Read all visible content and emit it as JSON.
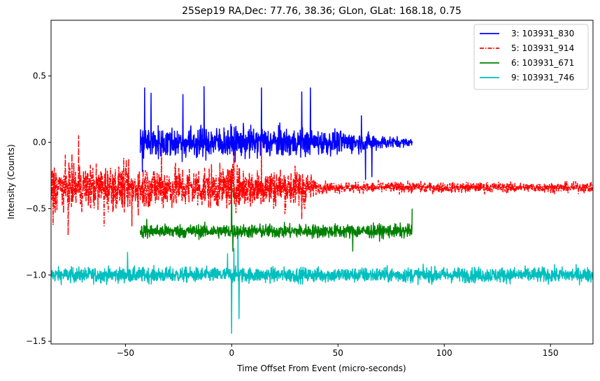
{
  "chart_data": {
    "type": "line",
    "title": "25Sep19 RA,Dec:   77.76,  38.36; GLon, GLat:  168.18,   0.75",
    "xlabel": "Time Offset From Event (micro-seconds)",
    "ylabel": "Intensity (Counts)",
    "xlim": [
      -85,
      170
    ],
    "ylim": [
      -1.52,
      0.92
    ],
    "xticks": [
      -50,
      0,
      50,
      100,
      150
    ],
    "xtick_labels": [
      "−50",
      "0",
      "50",
      "100",
      "150"
    ],
    "yticks": [
      -1.5,
      -1.0,
      -0.5,
      0.0,
      0.5
    ],
    "ytick_labels": [
      "−1.5",
      "−1.0",
      "−0.5",
      "0.0",
      "0.5"
    ],
    "grid": false,
    "legend_position": "top-right",
    "series": [
      {
        "name": "3: 103931_830",
        "color": "#0000ff",
        "linestyle": "solid",
        "x_start": -43,
        "x_end": 85,
        "mean": 0.0,
        "noise_envelope": [
          {
            "x": -43,
            "amplitude": 0.12
          },
          {
            "x": 20,
            "amplitude": 0.11
          },
          {
            "x": 55,
            "amplitude": 0.08
          },
          {
            "x": 85,
            "amplitude": 0.025
          }
        ],
        "peaks": [
          {
            "x": -42,
            "y": -0.22
          },
          {
            "x": -41,
            "y": 0.41
          },
          {
            "x": -38,
            "y": 0.37
          },
          {
            "x": -23,
            "y": 0.36
          },
          {
            "x": -13,
            "y": 0.42
          },
          {
            "x": 14,
            "y": 0.41
          },
          {
            "x": 33,
            "y": 0.38
          },
          {
            "x": 37,
            "y": 0.41
          },
          {
            "x": 61,
            "y": 0.2
          },
          {
            "x": 63,
            "y": -0.28
          },
          {
            "x": 66,
            "y": -0.26
          }
        ]
      },
      {
        "name": "5: 103931_914",
        "color": "#ff0000",
        "linestyle": "dashdot",
        "x_start": -85,
        "x_end": 170,
        "mean": -0.34,
        "noise_envelope": [
          {
            "x": -85,
            "amplitude": 0.17
          },
          {
            "x": 35,
            "amplitude": 0.14
          },
          {
            "x": 40,
            "amplitude": 0.04
          },
          {
            "x": 170,
            "amplitude": 0.035
          }
        ],
        "peaks": [
          {
            "x": -84,
            "y": -0.62
          },
          {
            "x": -77,
            "y": -0.7
          },
          {
            "x": -72,
            "y": 0.05
          },
          {
            "x": -60,
            "y": -0.63
          },
          {
            "x": -47,
            "y": -0.63
          },
          {
            "x": -33,
            "y": 0.04
          },
          {
            "x": 1,
            "y": 0.04
          },
          {
            "x": 14,
            "y": 0.02
          },
          {
            "x": 33,
            "y": -0.58
          }
        ]
      },
      {
        "name": "6: 103931_671",
        "color": "#008000",
        "linestyle": "solid",
        "x_start": -43,
        "x_end": 85,
        "mean": -0.67,
        "noise_envelope": [
          {
            "x": -43,
            "amplitude": 0.05
          },
          {
            "x": 85,
            "amplitude": 0.05
          }
        ],
        "peaks": [
          {
            "x": 0,
            "y": -0.2
          },
          {
            "x": 0.5,
            "y": -0.82
          },
          {
            "x": -40,
            "y": -0.58
          },
          {
            "x": 85,
            "y": -0.5
          },
          {
            "x": 57,
            "y": -0.82
          }
        ]
      },
      {
        "name": "9: 103931_746",
        "color": "#00bfbf",
        "linestyle": "solid",
        "x_start": -85,
        "x_end": 170,
        "mean": -1.0,
        "noise_envelope": [
          {
            "x": -85,
            "amplitude": 0.055
          },
          {
            "x": 170,
            "amplitude": 0.055
          }
        ],
        "peaks": [
          {
            "x": 0,
            "y": -1.44
          },
          {
            "x": 1,
            "y": -0.8
          },
          {
            "x": 3,
            "y": -0.67
          },
          {
            "x": 3.5,
            "y": -1.33
          },
          {
            "x": -49,
            "y": -0.83
          },
          {
            "x": -2,
            "y": -0.84
          }
        ]
      }
    ]
  }
}
